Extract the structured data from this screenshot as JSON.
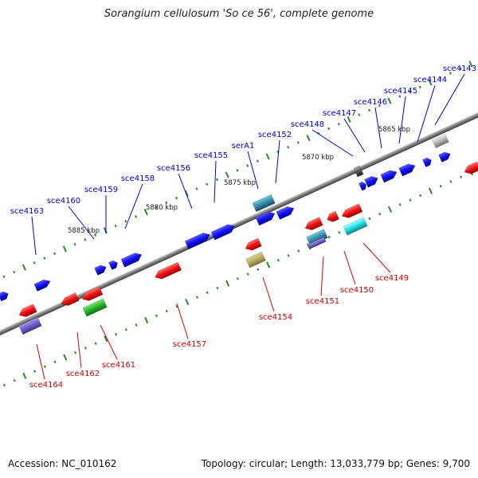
{
  "title": "Sorangium cellulosum 'So ce 56', complete genome",
  "footer": {
    "accession": "Accession: NC_010162",
    "summary": "Topology: circular; Length: 13,033,779 bp; Genes: 9,700"
  },
  "scale_labels": [
    "5865 kbp",
    "5870 kbp",
    "5875 kbp",
    "5880 kbp",
    "5885 kbp"
  ],
  "forward_genes": [
    "sce4143",
    "sce4144",
    "sce4145",
    "sce4146",
    "sce4147",
    "sce4148",
    "sce4152",
    "serA1",
    "sce4155",
    "sce4156",
    "sce4158",
    "sce4159",
    "sce4160",
    "sce4163"
  ],
  "reverse_genes": [
    "sce4149",
    "sce4150",
    "sce4151",
    "sce4154",
    "sce4157",
    "sce4161",
    "sce4162",
    "sce4164"
  ],
  "colors": {
    "forward": "#0000ee",
    "reverse": "#ee0000",
    "backbone": "#808080",
    "tick": "#2a8a2a"
  }
}
